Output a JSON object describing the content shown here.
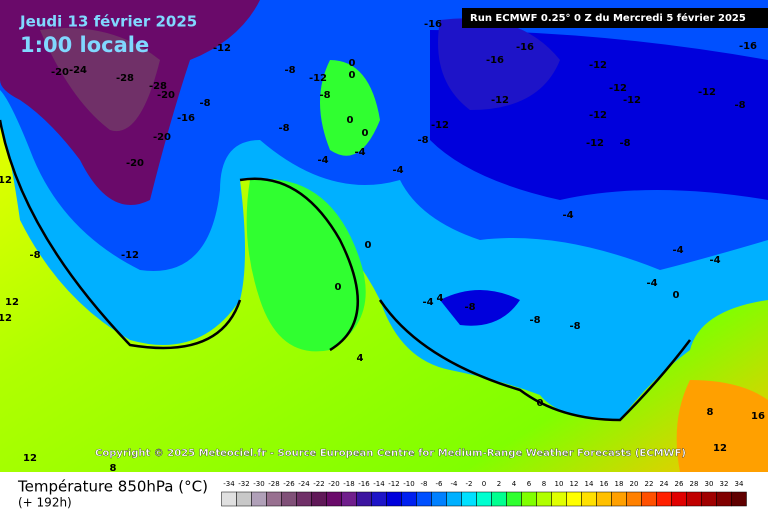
{
  "header": {
    "date": "Jeudi 13 février 2025",
    "time": "1:00 locale",
    "run": "Run ECMWF 0.25° 0 Z du Mercredi 5 février 2025"
  },
  "copyright": "Copyright © 2025 Meteociel.fr - Source European Centre for Medium-Range Weather Forecasts (ECMWF)",
  "legend": {
    "title": "Température 850hPa (°C)",
    "lead": "(+ 192h)",
    "ticks": [
      -34,
      -32,
      -30,
      -28,
      -26,
      -24,
      -22,
      -20,
      -18,
      -16,
      -14,
      -12,
      -10,
      -8,
      -6,
      -4,
      -2,
      0,
      2,
      4,
      6,
      8,
      10,
      12,
      14,
      16,
      18,
      20,
      22,
      24,
      26,
      28,
      30,
      32,
      34
    ],
    "colors": [
      "#e0e0e0",
      "#c8c8c8",
      "#b0a0b8",
      "#987090",
      "#805078",
      "#703068",
      "#601858",
      "#6a0a6a",
      "#701e8c",
      "#3c14a0",
      "#1e14c8",
      "#0000dc",
      "#0020f0",
      "#0050ff",
      "#0080ff",
      "#00b0ff",
      "#00e0ff",
      "#00ffd0",
      "#00ff90",
      "#30ff30",
      "#80ff00",
      "#b0ff00",
      "#e0ff00",
      "#ffff00",
      "#ffe000",
      "#ffc000",
      "#ffa000",
      "#ff8000",
      "#ff5000",
      "#ff2000",
      "#e00000",
      "#c00000",
      "#a00000",
      "#800000",
      "#600000"
    ]
  },
  "map": {
    "labels": [
      -20,
      -24,
      -28,
      -28,
      -20,
      -12,
      -16,
      -20,
      -20,
      -8,
      -12,
      -8,
      12,
      12,
      12,
      -8,
      -12,
      -8,
      -8,
      -4,
      -4,
      0,
      0,
      0,
      0,
      -16,
      -16,
      -16,
      -12,
      -12,
      -12,
      -12,
      -12,
      -12,
      -8,
      -12,
      -16,
      -8,
      -4,
      -8,
      -12,
      -4,
      -4,
      -4,
      -4,
      0,
      0,
      0,
      -4,
      4,
      -8,
      -8,
      -8,
      0,
      4,
      8,
      12,
      16,
      12,
      8
    ]
  }
}
